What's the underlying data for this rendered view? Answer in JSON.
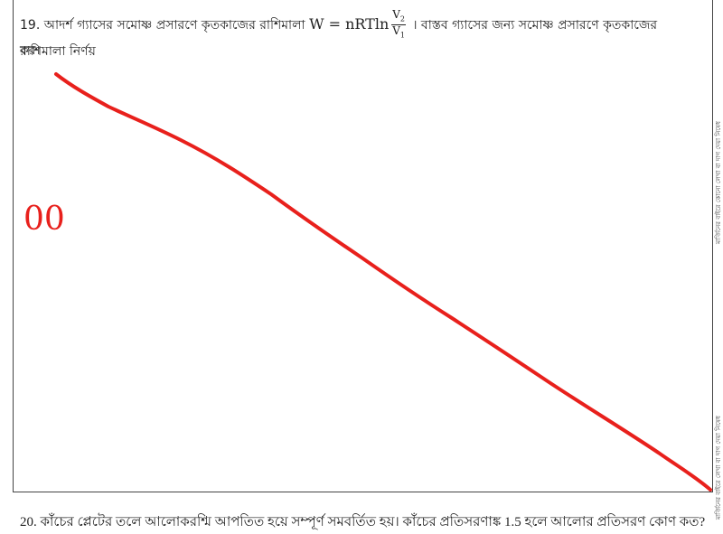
{
  "question_19": {
    "number": "19.",
    "text_before": "আদর্শ গ্যাসের সমোষ্ণ প্রসারণে কৃতকাজের রাশিমালা",
    "formula_lhs": "W = nRTln",
    "numerator_base": "V",
    "numerator_sub": "2",
    "denominator_base": "V",
    "denominator_sub": "1",
    "text_after": "। বাস্তব গ্যাসের জন্য সমোষ্ণ প্রসারণে কৃতকাজের রাশিমালা নির্ণয়",
    "text_end": "কর।"
  },
  "handwritten_mark": "00",
  "margin_notes": [
    "মার্জিনের বাইরে কোনো লেখা বা দাগ দেয়া নিষেধ",
    "মার্জিনের বাইরে লেখা বা দাগ দেয়া নিষেধ"
  ],
  "question_20": {
    "number": "20.",
    "text": "কাঁচের প্লেটের তলে আলোকরশ্মি আপতিত হয়ে সম্পূর্ণ সমবর্তিত হয়। কাঁচের প্রতিসরণাঙ্ক 1.5 হলে আলোর প্রতিসরণ কোণ কত?"
  }
}
